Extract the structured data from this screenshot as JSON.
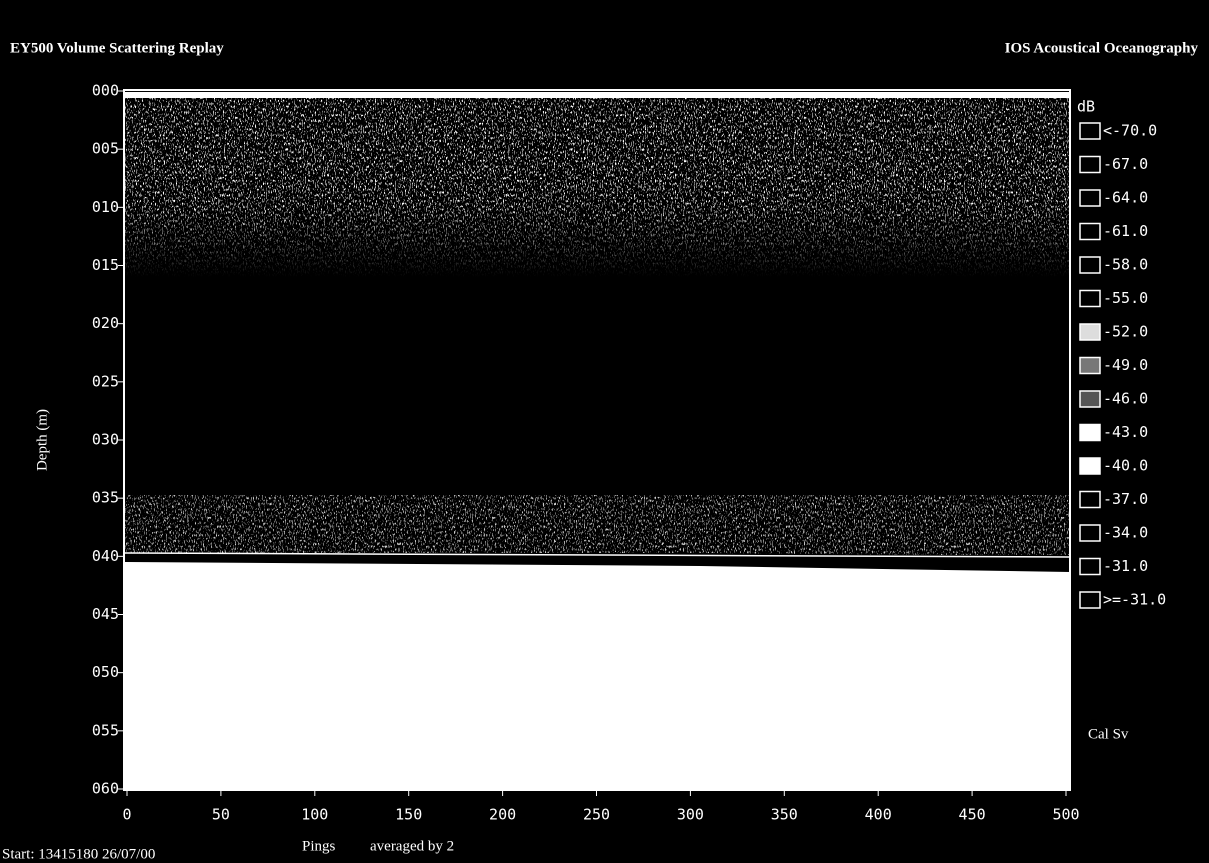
{
  "header": {
    "title": "EY500 Volume Scattering Replay",
    "organization": "IOS Acoustical Oceanography"
  },
  "y_axis": {
    "label": "Depth (m)",
    "ticks": [
      "000",
      "005",
      "010",
      "015",
      "020",
      "025",
      "030",
      "035",
      "040",
      "045",
      "050",
      "055",
      "060"
    ]
  },
  "x_axis": {
    "label": "Pings",
    "ticks": [
      "0",
      "50",
      "100",
      "150",
      "200",
      "250",
      "300",
      "350",
      "400",
      "450",
      "500"
    ]
  },
  "legend": {
    "unit": "dB",
    "items": [
      "<-70.0",
      "-67.0",
      "-64.0",
      "-61.0",
      "-58.0",
      "-55.0",
      "-52.0",
      "-49.0",
      "-46.0",
      "-43.0",
      "-40.0",
      "-37.0",
      "-34.0",
      "-31.0",
      ">=-31.0"
    ],
    "footer": "Cal Sv"
  },
  "status": {
    "start": "Start: 13415180  26/07/00",
    "averaging": "averaged by  2"
  }
}
